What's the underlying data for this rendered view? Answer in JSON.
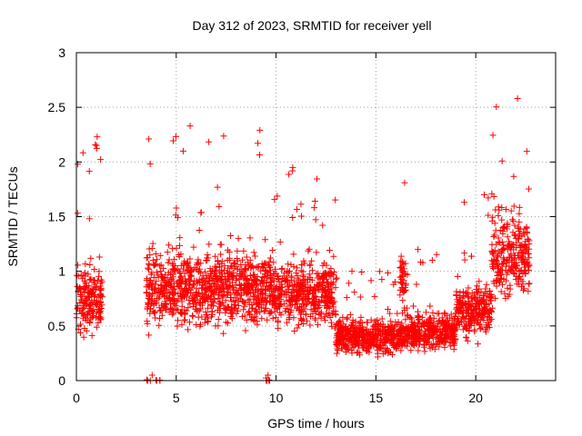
{
  "chart_data": {
    "type": "scatter",
    "title": "Day 312 of 2023, SRMTID for receiver yell",
    "xlabel": "GPS time / hours",
    "ylabel": "SRMTID / TECUs",
    "xlim": [
      0,
      24
    ],
    "ylim": [
      0,
      3
    ],
    "x_ticks": [
      0,
      5,
      10,
      15,
      20
    ],
    "y_ticks": [
      0,
      0.5,
      1,
      1.5,
      2,
      2.5,
      3
    ],
    "x_tick_labels": [
      "0",
      "5",
      "10",
      "15",
      "20"
    ],
    "y_tick_labels": [
      "0",
      "0.5",
      "1",
      "1.5",
      "2",
      "2.5",
      "3"
    ],
    "grid": true,
    "series": [
      {
        "name": "SRMTID",
        "color": "#ff0000",
        "marker": "plus",
        "segments": [
          {
            "x_start": 0.0,
            "x_end": 1.3,
            "y_base": 0.75,
            "y_spread": 0.35,
            "y_max_peak": 2.23
          },
          {
            "x_start": 3.5,
            "x_end": 4.2,
            "y_base": 0.0,
            "y_spread": 0.02,
            "y_max_peak": 0.05
          },
          {
            "x_start": 3.5,
            "x_end": 9.8,
            "y_base": 0.85,
            "y_spread": 0.4,
            "y_max_peak": 2.33
          },
          {
            "x_start": 9.5,
            "x_end": 9.7,
            "y_base": 0.0,
            "y_spread": 0.02,
            "y_max_peak": 0.05
          },
          {
            "x_start": 9.8,
            "x_end": 13.0,
            "y_base": 0.8,
            "y_spread": 0.35,
            "y_max_peak": 1.95
          },
          {
            "x_start": 13.0,
            "x_end": 16.5,
            "y_base": 0.4,
            "y_spread": 0.18,
            "y_max_peak": 1.0
          },
          {
            "x_start": 16.2,
            "x_end": 16.5,
            "y_base": 0.9,
            "y_spread": 0.3,
            "y_max_peak": 1.81
          },
          {
            "x_start": 16.5,
            "x_end": 19.0,
            "y_base": 0.45,
            "y_spread": 0.2,
            "y_max_peak": 1.2
          },
          {
            "x_start": 19.0,
            "x_end": 20.8,
            "y_base": 0.65,
            "y_spread": 0.3,
            "y_max_peak": 1.7
          },
          {
            "x_start": 20.8,
            "x_end": 22.7,
            "y_base": 1.15,
            "y_spread": 0.45,
            "y_max_peak": 2.58
          }
        ]
      }
    ]
  }
}
